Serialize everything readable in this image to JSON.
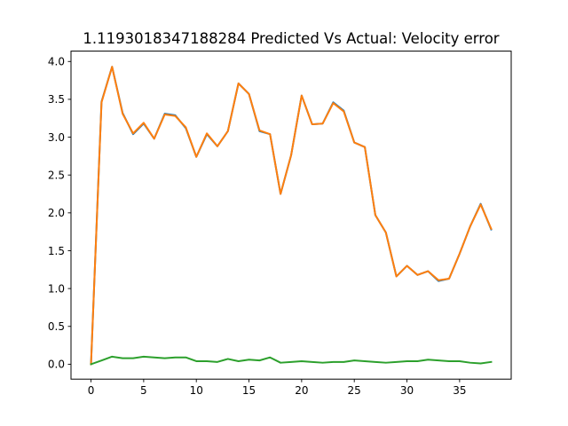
{
  "chart_data": {
    "type": "line",
    "title": "1.1193018347188284 Predicted Vs Actual: Velocity error",
    "xlabel": "",
    "ylabel": "",
    "xlim": [
      -1.9,
      39.9
    ],
    "ylim": [
      -0.197,
      4.137
    ],
    "xticks": [
      0,
      5,
      10,
      15,
      20,
      25,
      30,
      35
    ],
    "xtick_labels": [
      "0",
      "5",
      "10",
      "15",
      "20",
      "25",
      "30",
      "35"
    ],
    "yticks": [
      0.0,
      0.5,
      1.0,
      1.5,
      2.0,
      2.5,
      3.0,
      3.5,
      4.0
    ],
    "ytick_labels": [
      "0.0",
      "0.5",
      "1.0",
      "1.5",
      "2.0",
      "2.5",
      "3.0",
      "3.5",
      "4.0"
    ],
    "grid": false,
    "x": [
      0,
      1,
      2,
      3,
      4,
      5,
      6,
      7,
      8,
      9,
      10,
      11,
      12,
      13,
      14,
      15,
      16,
      17,
      18,
      19,
      20,
      21,
      22,
      23,
      24,
      25,
      26,
      27,
      28,
      29,
      30,
      31,
      32,
      33,
      34,
      35,
      36,
      37,
      38
    ],
    "series": [
      {
        "color": "#1f77b4",
        "values": [
          0.0,
          3.47,
          3.93,
          3.32,
          3.04,
          3.18,
          2.98,
          3.31,
          3.29,
          3.12,
          2.74,
          3.04,
          2.88,
          3.08,
          3.71,
          3.57,
          3.08,
          3.04,
          2.25,
          2.76,
          3.55,
          3.17,
          3.18,
          3.46,
          3.35,
          2.93,
          2.87,
          1.97,
          1.74,
          1.16,
          1.3,
          1.18,
          1.23,
          1.1,
          1.13,
          1.46,
          1.82,
          2.12,
          1.78
        ]
      },
      {
        "color": "#ff7f0e",
        "values": [
          0.0,
          3.46,
          3.93,
          3.31,
          3.05,
          3.19,
          2.98,
          3.3,
          3.28,
          3.13,
          2.74,
          3.05,
          2.88,
          3.08,
          3.71,
          3.57,
          3.09,
          3.04,
          2.25,
          2.76,
          3.55,
          3.17,
          3.18,
          3.45,
          3.34,
          2.93,
          2.87,
          1.97,
          1.74,
          1.16,
          1.3,
          1.18,
          1.23,
          1.11,
          1.13,
          1.46,
          1.82,
          2.11,
          1.79
        ]
      },
      {
        "color": "#2ca02c",
        "values": [
          0.0,
          0.05,
          0.1,
          0.08,
          0.08,
          0.1,
          0.09,
          0.08,
          0.09,
          0.09,
          0.04,
          0.04,
          0.03,
          0.07,
          0.04,
          0.06,
          0.05,
          0.09,
          0.02,
          0.03,
          0.04,
          0.03,
          0.02,
          0.03,
          0.03,
          0.05,
          0.04,
          0.03,
          0.02,
          0.03,
          0.04,
          0.04,
          0.06,
          0.05,
          0.04,
          0.04,
          0.02,
          0.01,
          0.03
        ]
      }
    ]
  }
}
